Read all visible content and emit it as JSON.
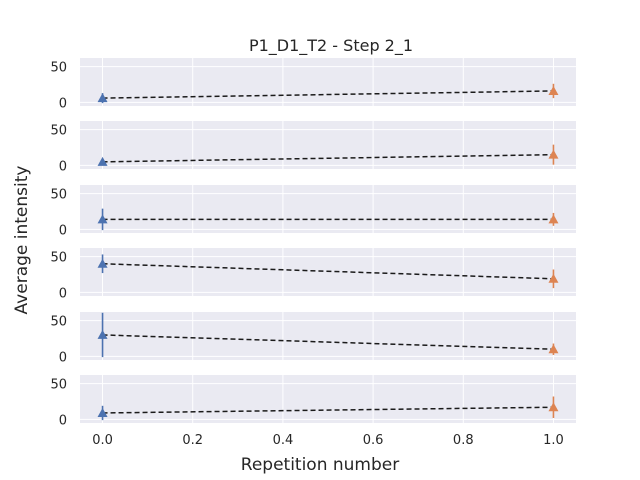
{
  "chart_data": {
    "type": "line",
    "title": "P1_D1_T2 - Step 2_1",
    "xlabel": "Repetition number",
    "ylabel": "Average intensity",
    "xlim": [
      -0.05,
      1.05
    ],
    "x_ticks": [
      "0.0",
      "0.2",
      "0.4",
      "0.6",
      "0.8",
      "1.0"
    ],
    "ylim": [
      -5,
      62
    ],
    "y_ticks": [
      "0",
      "50"
    ],
    "grid": true,
    "colors": {
      "background": "#eaeaf2",
      "series_a": "#4c72b0",
      "series_b": "#dd8452",
      "trend_line": "#1a1a1a"
    },
    "panels": [
      {
        "points": [
          {
            "x": 0.0,
            "y": 6,
            "err": 7
          },
          {
            "x": 1.0,
            "y": 16,
            "err": 10
          }
        ]
      },
      {
        "points": [
          {
            "x": 0.0,
            "y": 5,
            "err": 4
          },
          {
            "x": 1.0,
            "y": 15,
            "err": 14
          }
        ]
      },
      {
        "points": [
          {
            "x": 0.0,
            "y": 14,
            "err": 15
          },
          {
            "x": 1.0,
            "y": 14,
            "err": 9
          }
        ]
      },
      {
        "points": [
          {
            "x": 0.0,
            "y": 40,
            "err": 13
          },
          {
            "x": 1.0,
            "y": 19,
            "err": 13
          }
        ]
      },
      {
        "points": [
          {
            "x": 0.0,
            "y": 30,
            "err": 31
          },
          {
            "x": 1.0,
            "y": 10,
            "err": 8
          }
        ]
      },
      {
        "points": [
          {
            "x": 0.0,
            "y": 9,
            "err": 10
          },
          {
            "x": 1.0,
            "y": 17,
            "err": 15
          }
        ]
      }
    ]
  }
}
